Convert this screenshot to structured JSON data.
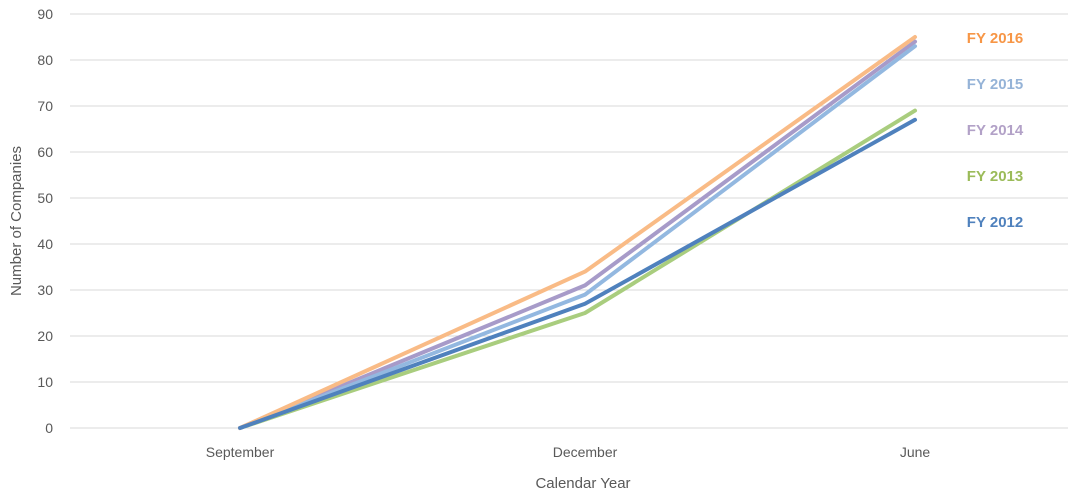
{
  "chart_data": {
    "type": "line",
    "categories": [
      "September",
      "December",
      "June"
    ],
    "xlabel": "Calendar Year",
    "ylabel": "Number of Companies",
    "ylim": [
      0,
      90
    ],
    "yticks": [
      0,
      10,
      20,
      30,
      40,
      50,
      60,
      70,
      80,
      90
    ],
    "grid": "horizontal",
    "legend": "inline labels at right",
    "series": [
      {
        "name": "FY 2012",
        "values": [
          0,
          27,
          67
        ],
        "color": "#4f81bd"
      },
      {
        "name": "FY 2013",
        "values": [
          0,
          25,
          69
        ],
        "color": "#a9cd7e"
      },
      {
        "name": "FY 2014",
        "values": [
          0,
          31,
          84
        ],
        "color": "#a79bc9"
      },
      {
        "name": "FY 2015",
        "values": [
          0,
          29,
          83
        ],
        "color": "#93b8e0"
      },
      {
        "name": "FY 2016",
        "values": [
          0,
          34,
          85
        ],
        "color": "#f9bb86"
      }
    ],
    "label_colors": {
      "FY 2016": "#f79646",
      "FY 2015": "#95b3d7",
      "FY 2014": "#b2a1c7",
      "FY 2013": "#9bbb59",
      "FY 2012": "#4f81bd"
    },
    "label_order": [
      "FY 2016",
      "FY 2015",
      "FY 2014",
      "FY 2013",
      "FY 2012"
    ]
  }
}
